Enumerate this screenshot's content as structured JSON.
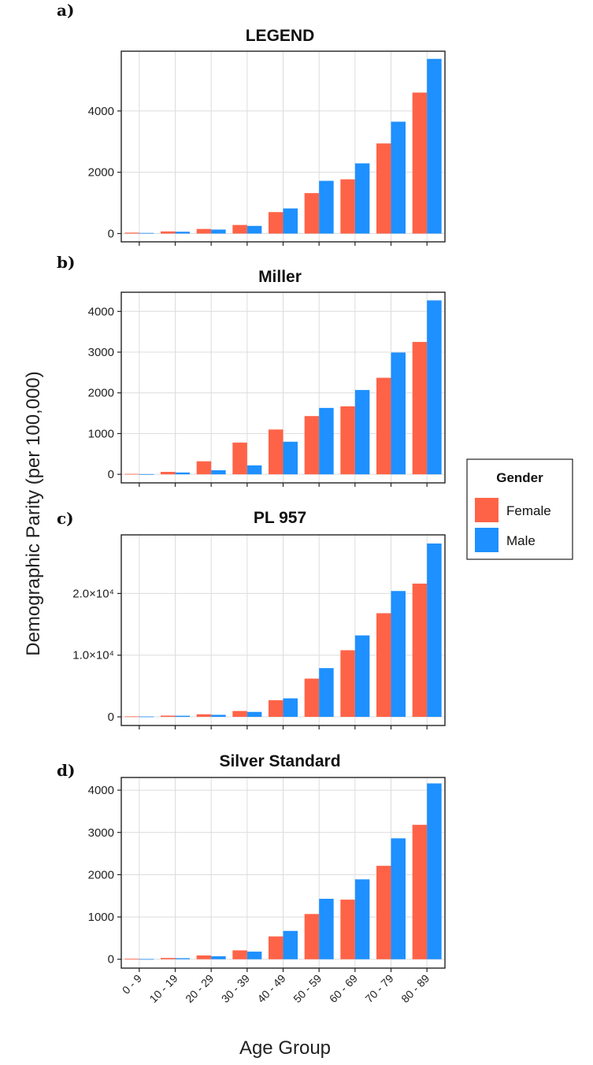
{
  "ylabel": "Demographic Parity (per 100,000)",
  "xlabel": "Age Group",
  "legend": {
    "title": "Gender",
    "entries": [
      {
        "name": "Female",
        "color": "#FF6347"
      },
      {
        "name": "Male",
        "color": "#1E90FF"
      }
    ]
  },
  "chart_data": [
    {
      "type": "bar",
      "panel": "a)",
      "title": "LEGEND",
      "categories": [
        "0 - 9",
        "10 - 19",
        "20 - 29",
        "30 - 39",
        "40 - 49",
        "50 - 59",
        "60 - 69",
        "70 - 79",
        "80 - 89"
      ],
      "series": [
        {
          "name": "Female",
          "values": [
            30,
            70,
            150,
            280,
            700,
            1320,
            1770,
            2940,
            4600
          ]
        },
        {
          "name": "Male",
          "values": [
            20,
            60,
            130,
            250,
            820,
            1720,
            2290,
            3650,
            5700
          ]
        }
      ],
      "ylim": [
        -270,
        5950
      ],
      "yticks": [
        0,
        2000,
        4000
      ],
      "ytick_labels": [
        "0",
        "2000",
        "4000"
      ]
    },
    {
      "type": "bar",
      "panel": "b)",
      "title": "Miller",
      "categories": [
        "0 - 9",
        "10 - 19",
        "20 - 29",
        "30 - 39",
        "40 - 49",
        "50 - 59",
        "60 - 69",
        "70 - 79",
        "80 - 89"
      ],
      "series": [
        {
          "name": "Female",
          "values": [
            10,
            60,
            320,
            780,
            1100,
            1430,
            1670,
            2370,
            3250
          ]
        },
        {
          "name": "Male",
          "values": [
            5,
            45,
            100,
            220,
            800,
            1630,
            2070,
            2990,
            4270
          ]
        }
      ],
      "ylim": [
        -210,
        4470
      ],
      "yticks": [
        0,
        1000,
        2000,
        3000,
        4000
      ],
      "ytick_labels": [
        "0",
        "1000",
        "2000",
        "3000",
        "4000"
      ]
    },
    {
      "type": "bar",
      "panel": "c)",
      "title": "PL 957",
      "categories": [
        "0 - 9",
        "10 - 19",
        "20 - 29",
        "30 - 39",
        "40 - 49",
        "50 - 59",
        "60 - 69",
        "70 - 79",
        "80 - 89"
      ],
      "series": [
        {
          "name": "Female",
          "values": [
            80,
            200,
            420,
            950,
            2700,
            6200,
            10800,
            16800,
            21600
          ]
        },
        {
          "name": "Male",
          "values": [
            60,
            180,
            330,
            800,
            3000,
            7900,
            13200,
            20400,
            28100
          ]
        }
      ],
      "ylim": [
        -1400,
        29500
      ],
      "yticks": [
        0,
        10000,
        20000
      ],
      "ytick_labels": [
        "0",
        "1.0×10⁴",
        "2.0×10⁴"
      ]
    },
    {
      "type": "bar",
      "panel": "d)",
      "title": "Silver Standard",
      "categories": [
        "0 - 9",
        "10 - 19",
        "20 - 29",
        "30 - 39",
        "40 - 49",
        "50 - 59",
        "60 - 69",
        "70 - 79",
        "80 - 89"
      ],
      "series": [
        {
          "name": "Female",
          "values": [
            10,
            30,
            90,
            210,
            540,
            1070,
            1410,
            2210,
            3180
          ]
        },
        {
          "name": "Male",
          "values": [
            5,
            25,
            70,
            180,
            670,
            1430,
            1890,
            2860,
            4160
          ]
        }
      ],
      "ylim": [
        -210,
        4300
      ],
      "yticks": [
        0,
        1000,
        2000,
        3000,
        4000
      ],
      "ytick_labels": [
        "0",
        "1000",
        "2000",
        "3000",
        "4000"
      ]
    }
  ]
}
